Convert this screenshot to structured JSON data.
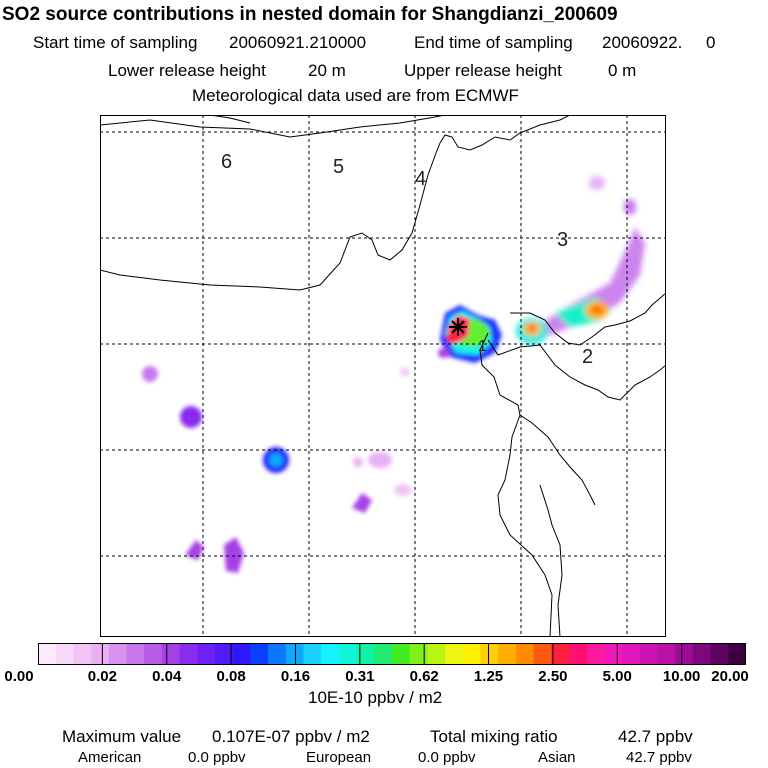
{
  "header": {
    "title": "SO2 source contributions in nested domain for Shangdianzi_200609",
    "start_label": "Start time of sampling",
    "start_value": "20060921.210000",
    "end_label": "End time of sampling",
    "end_value": "20060922.     0",
    "lower_label": "Lower release height",
    "lower_value": "20 m",
    "upper_label": "Upper release height",
    "upper_value": "0 m",
    "met_line": "Meteorological data used are from ECMWF"
  },
  "map": {
    "region_labels": [
      "6",
      "5",
      "4",
      "3",
      "2",
      "1"
    ],
    "colors": {
      "grid": "#000000",
      "coast": "#000000"
    }
  },
  "chart_data": {
    "type": "heatmap",
    "title": "SO2 source contributions in nested domain for Shangdianzi_200609",
    "colorbar": {
      "tick_labels": [
        "0.00",
        "0.02",
        "0.04",
        "0.08",
        "0.16",
        "0.31",
        "0.62",
        "1.25",
        "2.50",
        "5.00",
        "10.00",
        "20.00"
      ],
      "unit": "10E-10 ppbv / m2",
      "colors": [
        "#fcebfc",
        "#f6d8f8",
        "#f1c4f5",
        "#eab0f2",
        "#d993ef",
        "#c877ec",
        "#b75be9",
        "#a640e6",
        "#8a2cf0",
        "#6d22f5",
        "#4f1cf8",
        "#2f18fb",
        "#0a40ff",
        "#0c78ff",
        "#10a8ff",
        "#1ad0ff",
        "#12f2ff",
        "#10f5d8",
        "#12f0a6",
        "#20ea70",
        "#40ee20",
        "#80f016",
        "#b8f414",
        "#eaf814",
        "#fff000",
        "#ffd000",
        "#ffae00",
        "#ff8a00",
        "#ff5a12",
        "#ff2040",
        "#ff1070",
        "#ff18a0",
        "#f018b8",
        "#e016bc",
        "#cc14b4",
        "#b812a8",
        "#9c0c94",
        "#7c087c",
        "#5c0460",
        "#3c0040"
      ]
    },
    "max_value": "0.107E-07 ppbv / m2",
    "total_mixing_ratio": "42.7 ppbv",
    "contributions": [
      {
        "region": "American",
        "value": "0.0 ppbv"
      },
      {
        "region": "European",
        "value": "0.0 ppbv"
      },
      {
        "region": "Asian",
        "value": "42.7 ppbv"
      }
    ]
  },
  "footer": {
    "max_label": "Maximum value",
    "max_value": "0.107E-07 ppbv / m2",
    "total_label": "Total mixing ratio",
    "total_value": "42.7 ppbv",
    "american_label": "American",
    "american_value": "0.0 ppbv",
    "european_label": "European",
    "european_value": "0.0 ppbv",
    "asian_label": "Asian",
    "asian_value": "42.7 ppbv"
  }
}
